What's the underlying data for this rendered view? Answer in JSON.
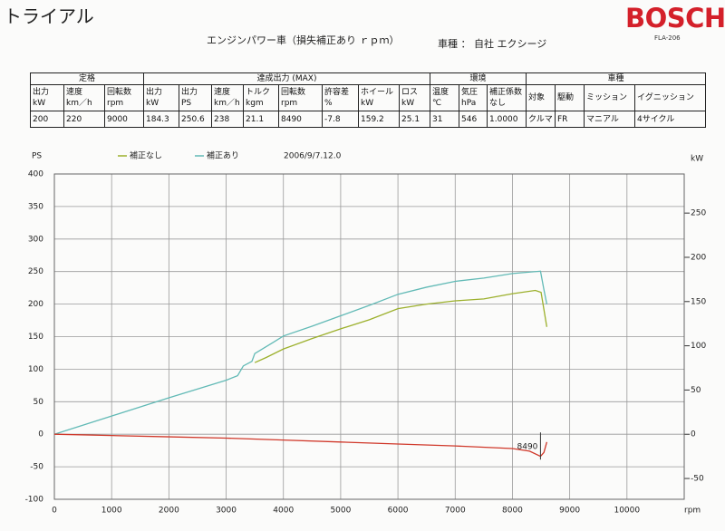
{
  "header": {
    "title": "トライアル",
    "subtitle": "エンジンパワー車（損失補正あり ｒｐｍ）",
    "model_label": "車種 ：",
    "model_value": "自社 エクシージ",
    "brand": "BOSCH",
    "code": "FLA-206"
  },
  "table": {
    "groups": [
      {
        "label": "定格",
        "columns": [
          {
            "header": "出力\nkW",
            "value": "200"
          },
          {
            "header": "速度\nkm／h",
            "value": "220"
          },
          {
            "header": "回転数\nrpm",
            "value": "9000"
          }
        ]
      },
      {
        "label": "達成出力 (MAX)",
        "columns": [
          {
            "header": "出力\nkW",
            "value": "184.3"
          },
          {
            "header": "出力\nPS",
            "value": "250.6"
          },
          {
            "header": "速度\nkm／h",
            "value": "238"
          },
          {
            "header": "トルク\nkgm",
            "value": "21.1"
          },
          {
            "header": "回転数\nrpm",
            "value": "8490"
          },
          {
            "header": "許容差\n%",
            "value": "-7.8"
          },
          {
            "header": "ホイール\nkW",
            "value": "159.2"
          },
          {
            "header": "ロス\nkW",
            "value": "25.1"
          }
        ]
      },
      {
        "label": "環境",
        "columns": [
          {
            "header": "温度\n℃",
            "value": "31"
          },
          {
            "header": "気圧\nhPa",
            "value": "546"
          },
          {
            "header": "補正係数\nなし",
            "value": "1.0000"
          }
        ]
      },
      {
        "label": "車種",
        "columns": [
          {
            "header": "対象",
            "value": "クルマ"
          },
          {
            "header": "駆動",
            "value": "FR"
          },
          {
            "header": "ミッション",
            "value": "マニアル"
          },
          {
            "header": "イグニッション",
            "value": "4サイクル"
          }
        ]
      }
    ]
  },
  "chart_data": {
    "type": "line",
    "y_label": "PS",
    "y2_label": "kW",
    "x_label": "rpm",
    "date": "2006/9/7.12.0",
    "xlim": [
      0,
      11000
    ],
    "xticks": [
      0,
      1000,
      2000,
      3000,
      4000,
      5000,
      6000,
      7000,
      8000,
      9000,
      10000
    ],
    "ylim": [
      -100,
      400
    ],
    "yticks": [
      -100,
      -50,
      0,
      50,
      100,
      150,
      200,
      250,
      300,
      350,
      400
    ],
    "y2lim": [
      -73.5,
      294.2
    ],
    "y2ticks": [
      -50,
      0,
      50,
      100,
      150,
      200,
      250
    ],
    "grid": true,
    "series": [
      {
        "name": "補正なし",
        "color": "#9cb02c",
        "x": [
          3500,
          3700,
          4000,
          4500,
          5000,
          5500,
          6000,
          6500,
          7000,
          7500,
          8000,
          8400,
          8500,
          8600
        ],
        "values": [
          110,
          118,
          131,
          147,
          162,
          176,
          193,
          200,
          205,
          208,
          216,
          221,
          218,
          165
        ]
      },
      {
        "name": "補正あり",
        "color": "#62bab6",
        "x": [
          0,
          1000,
          2000,
          3000,
          3200,
          3300,
          3450,
          3500,
          3800,
          4000,
          4500,
          5000,
          5500,
          6000,
          6500,
          7000,
          7500,
          8000,
          8490,
          8550,
          8600
        ],
        "values": [
          0,
          28,
          56,
          83,
          90,
          105,
          112,
          124,
          140,
          151,
          166,
          182,
          198,
          215,
          226,
          235,
          240,
          247,
          250.6,
          222,
          200
        ]
      },
      {
        "color": "#d0382a",
        "x": [
          0,
          1000,
          2000,
          3000,
          4000,
          5000,
          6000,
          7000,
          8000,
          8300,
          8490,
          8550,
          8600
        ],
        "values": [
          0,
          -2,
          -4,
          -6,
          -9,
          -12,
          -15,
          -18,
          -22,
          -26,
          -34,
          -28,
          -12
        ]
      }
    ],
    "annotations": [
      {
        "x": 8490
      }
    ]
  }
}
